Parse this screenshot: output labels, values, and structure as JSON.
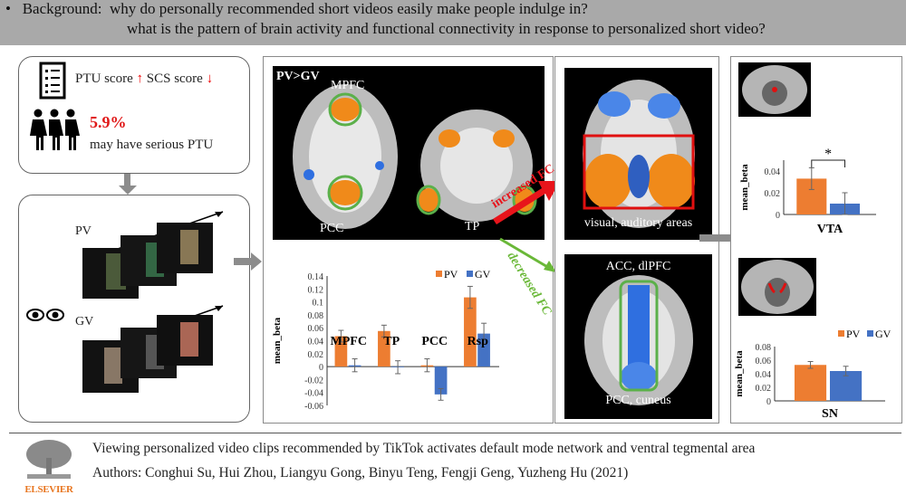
{
  "header": {
    "line1": "•   Background:  why do personally recommended short videos easily make people indulge in?",
    "line2": "what is the pattern of brain activity and functional connectivity in response to personalized short video?"
  },
  "left": {
    "scores_text": "PTU score",
    "up_arrow": "↑",
    "scs_text": "SCS score",
    "down_arrow": "↓",
    "percent": "5.9%",
    "percent_desc": "may have serious PTU",
    "pv_label": "PV",
    "gv_label": "GV",
    "icons": [
      "checklist-icon",
      "people-icon",
      "eyes-icon"
    ]
  },
  "middle": {
    "contrast_label": "PV>GV",
    "mpfc": "MPFC",
    "pcc": "PCC",
    "tp": "TP"
  },
  "fc": {
    "increased": "increased FC",
    "decreased": "decreased FC",
    "colors": {
      "increased": "#e8141b",
      "decreased": "#6ab838"
    }
  },
  "right1": {
    "visual_caption": "visual, auditory areas",
    "acc_caption": "ACC, dlPFC",
    "pcc_caption": "PCC, cuneus"
  },
  "colors": {
    "PV": "#ed7d31",
    "GV": "#4472c4"
  },
  "chart_data": [
    {
      "type": "bar",
      "categories": [
        "MPFC",
        "TP",
        "PCC",
        "Rsp"
      ],
      "series": [
        {
          "name": "PV",
          "values": [
            0.047,
            0.055,
            0.002,
            0.107
          ],
          "errors": [
            0.009,
            0.009,
            0.01,
            0.017
          ]
        },
        {
          "name": "GV",
          "values": [
            0.002,
            -0.001,
            -0.043,
            0.051
          ],
          "errors": [
            0.01,
            0.01,
            0.009,
            0.016
          ]
        }
      ],
      "ylabel": "mean_beta",
      "ylim": [
        -0.06,
        0.14
      ],
      "yticks": [
        "0.14",
        "0.12",
        "0.1",
        "0.08",
        "0.06",
        "0.04",
        "0.02",
        "0",
        "-0.02",
        "-0.04",
        "-0.06"
      ],
      "legend": "top-right"
    },
    {
      "type": "bar",
      "categories": [
        "VTA"
      ],
      "series": [
        {
          "name": "PV",
          "values": [
            0.033
          ],
          "errors": [
            0.01
          ]
        },
        {
          "name": "GV",
          "values": [
            0.01
          ],
          "errors": [
            0.01
          ]
        }
      ],
      "ylabel": "mean_beta",
      "ylim": [
        0,
        0.05
      ],
      "yticks": [
        "0.04",
        "0.02",
        "0"
      ],
      "annotation": "*",
      "legend": "top-right"
    },
    {
      "type": "bar",
      "categories": [
        "SN"
      ],
      "series": [
        {
          "name": "PV",
          "values": [
            0.053
          ],
          "errors": [
            0.005
          ]
        },
        {
          "name": "GV",
          "values": [
            0.044
          ],
          "errors": [
            0.007
          ]
        }
      ],
      "ylabel": "mean_beta",
      "ylim": [
        0,
        0.08
      ],
      "yticks": [
        "0.08",
        "0.06",
        "0.04",
        "0.02",
        "0"
      ],
      "legend": "top-right"
    }
  ],
  "footer": {
    "title": "Viewing personalized video clips recommended by TikTok activates default mode network and ventral tegmental area",
    "authors": "Authors: Conghui Su, Hui Zhou, Liangyu Gong, Binyu Teng, Fengji Geng, Yuzheng Hu (2021)",
    "logo": "ELSEVIER"
  }
}
